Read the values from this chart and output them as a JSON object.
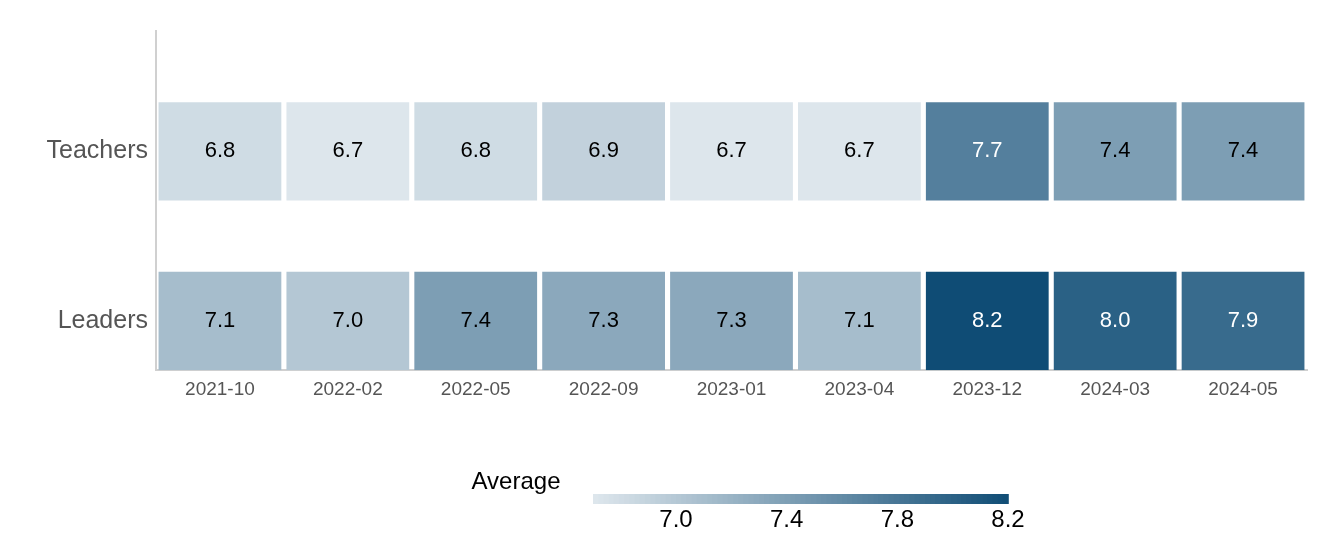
{
  "chart_data": {
    "type": "heatmap",
    "categories": [
      "2021-10",
      "2022-02",
      "2022-05",
      "2022-09",
      "2023-01",
      "2023-04",
      "2023-12",
      "2024-03",
      "2024-05"
    ],
    "y_categories": [
      "Teachers",
      "Leaders"
    ],
    "cells": [
      [
        6.8,
        6.7,
        6.8,
        6.9,
        6.7,
        6.7,
        7.7,
        7.4,
        7.4
      ],
      [
        7.1,
        7.0,
        7.4,
        7.3,
        7.3,
        7.1,
        8.2,
        8.0,
        7.9
      ]
    ],
    "cell_labels": [
      [
        "6.8",
        "6.7",
        "6.8",
        "6.9",
        "6.7",
        "6.7",
        "7.7",
        "7.4",
        "7.4"
      ],
      [
        "7.1",
        "7.0",
        "7.4",
        "7.3",
        "7.3",
        "7.1",
        "8.2",
        "8.0",
        "7.9"
      ]
    ],
    "clabel": "Average",
    "clim": [
      6.7,
      8.2
    ],
    "cticks": [
      {
        "value": 7.0,
        "label": "7.0"
      },
      7.4,
      7.8,
      8.2
    ],
    "grid": false
  }
}
